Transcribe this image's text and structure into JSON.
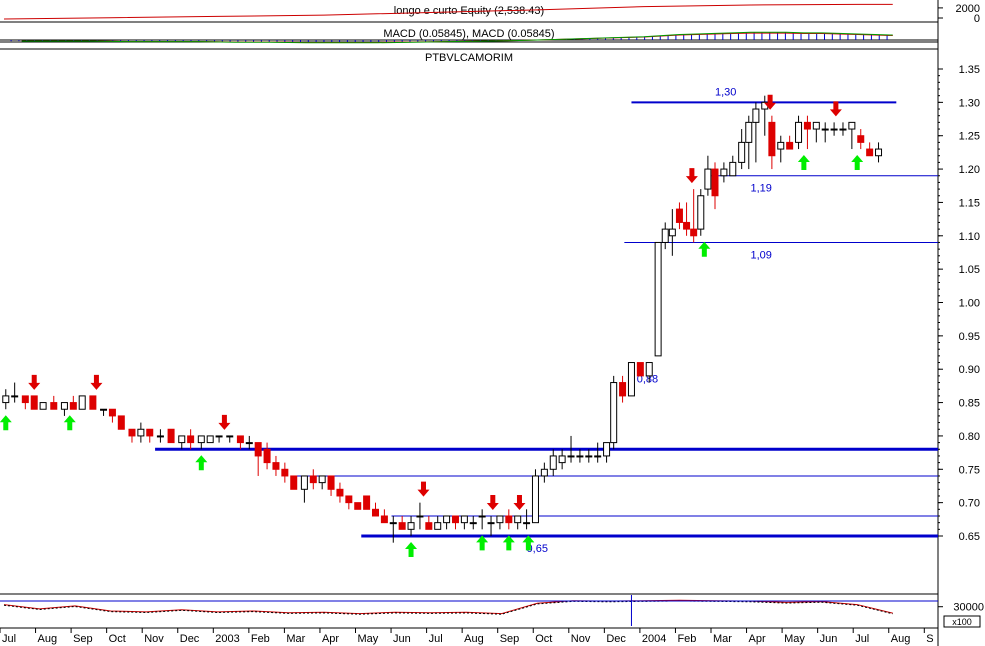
{
  "chart_data": {
    "type": "candlestick",
    "title": "PTBVLCAMORIM",
    "equity_panel": {
      "label": "longo e curto Equity (2,538.43)",
      "y_ticks": [
        "2000",
        "0"
      ],
      "color": "#cc0000"
    },
    "macd_panel": {
      "label": "MACD (0.05845), MACD (0.05845)",
      "histogram_color": "#0000cc"
    },
    "volume_panel": {
      "y_ticks": [
        "30000"
      ],
      "multiplier_label": "x100",
      "line_color": "#cc0000"
    },
    "x_axis_labels": [
      "Jul",
      "Aug",
      "Sep",
      "Oct",
      "Nov",
      "Dec",
      "2003",
      "Feb",
      "Mar",
      "Apr",
      "May",
      "Jun",
      "Jul",
      "Aug",
      "Sep",
      "Oct",
      "Nov",
      "Dec",
      "2004",
      "Feb",
      "Mar",
      "Apr",
      "May",
      "Jun",
      "Jul",
      "Aug",
      "S"
    ],
    "y_axis": {
      "ticks": [
        "1.35",
        "1.30",
        "1.25",
        "1.20",
        "1.15",
        "1.10",
        "1.05",
        "1.00",
        "0.95",
        "0.90",
        "0.85",
        "0.80",
        "0.75",
        "0.70",
        "0.65"
      ],
      "range": [
        0.612,
        1.36
      ]
    },
    "levels": [
      {
        "label": "1,30",
        "value": 1.3,
        "color": "#0000cc",
        "weight": "medium",
        "label_month": 20.3
      },
      {
        "label": "1,19",
        "value": 1.19,
        "color": "#0000cc",
        "weight": "thin",
        "label_month": 21.3
      },
      {
        "label": "1,09",
        "value": 1.09,
        "color": "#0000cc",
        "weight": "thin",
        "label_month": 21.3
      },
      {
        "label": "0,88",
        "value": 0.88,
        "color": "#0000cc",
        "weight": "none",
        "label_month": 18.1
      },
      {
        "label": "",
        "value": 0.78,
        "color": "#0000cc",
        "weight": "thick"
      },
      {
        "label": "",
        "value": 0.74,
        "color": "#0000cc",
        "weight": "thin"
      },
      {
        "label": "",
        "value": 0.68,
        "color": "#0000cc",
        "weight": "thin"
      },
      {
        "label": "0,65",
        "value": 0.65,
        "color": "#0000cc",
        "weight": "thick",
        "label_month": 15.0
      }
    ],
    "candles": [
      {
        "m": 0.05,
        "o": 0.85,
        "h": 0.87,
        "l": 0.84,
        "c": 0.86
      },
      {
        "m": 0.3,
        "o": 0.86,
        "h": 0.88,
        "l": 0.85,
        "c": 0.86
      },
      {
        "m": 0.6,
        "o": 0.86,
        "h": 0.86,
        "l": 0.84,
        "c": 0.85
      },
      {
        "m": 0.85,
        "o": 0.86,
        "h": 0.86,
        "l": 0.84,
        "c": 0.84
      },
      {
        "m": 1.1,
        "o": 0.84,
        "h": 0.85,
        "l": 0.84,
        "c": 0.85
      },
      {
        "m": 1.4,
        "o": 0.85,
        "h": 0.86,
        "l": 0.84,
        "c": 0.84
      },
      {
        "m": 1.7,
        "o": 0.84,
        "h": 0.85,
        "l": 0.83,
        "c": 0.85
      },
      {
        "m": 1.95,
        "o": 0.85,
        "h": 0.86,
        "l": 0.84,
        "c": 0.84
      },
      {
        "m": 2.2,
        "o": 0.84,
        "h": 0.86,
        "l": 0.84,
        "c": 0.86
      },
      {
        "m": 2.5,
        "o": 0.86,
        "h": 0.86,
        "l": 0.84,
        "c": 0.84
      },
      {
        "m": 2.8,
        "o": 0.84,
        "h": 0.84,
        "l": 0.83,
        "c": 0.84
      },
      {
        "m": 3.05,
        "o": 0.84,
        "h": 0.84,
        "l": 0.82,
        "c": 0.83
      },
      {
        "m": 3.3,
        "o": 0.83,
        "h": 0.83,
        "l": 0.81,
        "c": 0.81
      },
      {
        "m": 3.6,
        "o": 0.81,
        "h": 0.81,
        "l": 0.79,
        "c": 0.8
      },
      {
        "m": 3.85,
        "o": 0.8,
        "h": 0.82,
        "l": 0.79,
        "c": 0.81
      },
      {
        "m": 4.1,
        "o": 0.81,
        "h": 0.81,
        "l": 0.79,
        "c": 0.8
      },
      {
        "m": 4.4,
        "o": 0.8,
        "h": 0.81,
        "l": 0.79,
        "c": 0.8
      },
      {
        "m": 4.7,
        "o": 0.81,
        "h": 0.81,
        "l": 0.79,
        "c": 0.79
      },
      {
        "m": 5.0,
        "o": 0.79,
        "h": 0.8,
        "l": 0.78,
        "c": 0.8
      },
      {
        "m": 5.25,
        "o": 0.8,
        "h": 0.81,
        "l": 0.78,
        "c": 0.79
      },
      {
        "m": 5.55,
        "o": 0.79,
        "h": 0.8,
        "l": 0.78,
        "c": 0.8
      },
      {
        "m": 5.8,
        "o": 0.79,
        "h": 0.8,
        "l": 0.79,
        "c": 0.8
      },
      {
        "m": 6.05,
        "o": 0.8,
        "h": 0.8,
        "l": 0.79,
        "c": 0.8
      },
      {
        "m": 6.35,
        "o": 0.8,
        "h": 0.8,
        "l": 0.79,
        "c": 0.8
      },
      {
        "m": 6.65,
        "o": 0.8,
        "h": 0.8,
        "l": 0.78,
        "c": 0.79
      },
      {
        "m": 6.9,
        "o": 0.79,
        "h": 0.8,
        "l": 0.78,
        "c": 0.79
      },
      {
        "m": 7.15,
        "o": 0.79,
        "h": 0.79,
        "l": 0.74,
        "c": 0.77
      },
      {
        "m": 7.4,
        "o": 0.78,
        "h": 0.79,
        "l": 0.75,
        "c": 0.76
      },
      {
        "m": 7.65,
        "o": 0.76,
        "h": 0.77,
        "l": 0.74,
        "c": 0.75
      },
      {
        "m": 7.9,
        "o": 0.75,
        "h": 0.76,
        "l": 0.73,
        "c": 0.74
      },
      {
        "m": 8.15,
        "o": 0.74,
        "h": 0.74,
        "l": 0.72,
        "c": 0.72
      },
      {
        "m": 8.45,
        "o": 0.72,
        "h": 0.74,
        "l": 0.7,
        "c": 0.74
      },
      {
        "m": 8.7,
        "o": 0.74,
        "h": 0.75,
        "l": 0.72,
        "c": 0.73
      },
      {
        "m": 8.95,
        "o": 0.73,
        "h": 0.74,
        "l": 0.72,
        "c": 0.74
      },
      {
        "m": 9.2,
        "o": 0.74,
        "h": 0.74,
        "l": 0.71,
        "c": 0.72
      },
      {
        "m": 9.45,
        "o": 0.72,
        "h": 0.73,
        "l": 0.7,
        "c": 0.71
      },
      {
        "m": 9.7,
        "o": 0.71,
        "h": 0.71,
        "l": 0.69,
        "c": 0.7
      },
      {
        "m": 9.95,
        "o": 0.7,
        "h": 0.7,
        "l": 0.69,
        "c": 0.69
      },
      {
        "m": 10.2,
        "o": 0.71,
        "h": 0.71,
        "l": 0.69,
        "c": 0.69
      },
      {
        "m": 10.45,
        "o": 0.69,
        "h": 0.7,
        "l": 0.68,
        "c": 0.68
      },
      {
        "m": 10.7,
        "o": 0.68,
        "h": 0.69,
        "l": 0.67,
        "c": 0.67
      },
      {
        "m": 10.95,
        "o": 0.67,
        "h": 0.68,
        "l": 0.64,
        "c": 0.67
      },
      {
        "m": 11.2,
        "o": 0.67,
        "h": 0.68,
        "l": 0.66,
        "c": 0.66
      },
      {
        "m": 11.45,
        "o": 0.66,
        "h": 0.68,
        "l": 0.65,
        "c": 0.67
      },
      {
        "m": 11.7,
        "o": 0.68,
        "h": 0.7,
        "l": 0.66,
        "c": 0.68
      },
      {
        "m": 11.95,
        "o": 0.67,
        "h": 0.68,
        "l": 0.66,
        "c": 0.66
      },
      {
        "m": 12.2,
        "o": 0.66,
        "h": 0.68,
        "l": 0.66,
        "c": 0.67
      },
      {
        "m": 12.45,
        "o": 0.67,
        "h": 0.68,
        "l": 0.66,
        "c": 0.68
      },
      {
        "m": 12.7,
        "o": 0.68,
        "h": 0.68,
        "l": 0.66,
        "c": 0.67
      },
      {
        "m": 12.95,
        "o": 0.67,
        "h": 0.68,
        "l": 0.66,
        "c": 0.68
      },
      {
        "m": 13.2,
        "o": 0.67,
        "h": 0.68,
        "l": 0.66,
        "c": 0.67
      },
      {
        "m": 13.45,
        "o": 0.68,
        "h": 0.69,
        "l": 0.66,
        "c": 0.68
      },
      {
        "m": 13.7,
        "o": 0.67,
        "h": 0.68,
        "l": 0.65,
        "c": 0.67
      },
      {
        "m": 13.95,
        "o": 0.67,
        "h": 0.68,
        "l": 0.66,
        "c": 0.68
      },
      {
        "m": 14.2,
        "o": 0.68,
        "h": 0.69,
        "l": 0.66,
        "c": 0.67
      },
      {
        "m": 14.45,
        "o": 0.67,
        "h": 0.68,
        "l": 0.66,
        "c": 0.68
      },
      {
        "m": 14.7,
        "o": 0.67,
        "h": 0.69,
        "l": 0.66,
        "c": 0.67
      },
      {
        "m": 14.95,
        "o": 0.67,
        "h": 0.75,
        "l": 0.67,
        "c": 0.74
      },
      {
        "m": 15.2,
        "o": 0.74,
        "h": 0.76,
        "l": 0.73,
        "c": 0.75
      },
      {
        "m": 15.45,
        "o": 0.75,
        "h": 0.78,
        "l": 0.74,
        "c": 0.77
      },
      {
        "m": 15.7,
        "o": 0.76,
        "h": 0.78,
        "l": 0.75,
        "c": 0.77
      },
      {
        "m": 15.95,
        "o": 0.77,
        "h": 0.8,
        "l": 0.76,
        "c": 0.77
      },
      {
        "m": 16.2,
        "o": 0.77,
        "h": 0.78,
        "l": 0.76,
        "c": 0.77
      },
      {
        "m": 16.45,
        "o": 0.77,
        "h": 0.78,
        "l": 0.76,
        "c": 0.77
      },
      {
        "m": 16.7,
        "o": 0.77,
        "h": 0.79,
        "l": 0.76,
        "c": 0.77
      },
      {
        "m": 16.95,
        "o": 0.77,
        "h": 0.79,
        "l": 0.76,
        "c": 0.79
      },
      {
        "m": 17.15,
        "o": 0.79,
        "h": 0.89,
        "l": 0.78,
        "c": 0.88
      },
      {
        "m": 17.4,
        "o": 0.88,
        "h": 0.89,
        "l": 0.85,
        "c": 0.86
      },
      {
        "m": 17.65,
        "o": 0.86,
        "h": 0.91,
        "l": 0.86,
        "c": 0.91
      },
      {
        "m": 17.9,
        "o": 0.91,
        "h": 0.91,
        "l": 0.89,
        "c": 0.89
      },
      {
        "m": 18.15,
        "o": 0.89,
        "h": 0.91,
        "l": 0.88,
        "c": 0.91
      },
      {
        "m": 18.4,
        "o": 0.92,
        "h": 1.09,
        "l": 0.92,
        "c": 1.09
      },
      {
        "m": 18.6,
        "o": 1.09,
        "h": 1.12,
        "l": 1.08,
        "c": 1.11
      },
      {
        "m": 18.8,
        "o": 1.1,
        "h": 1.14,
        "l": 1.07,
        "c": 1.11
      },
      {
        "m": 19.0,
        "o": 1.14,
        "h": 1.15,
        "l": 1.11,
        "c": 1.12
      },
      {
        "m": 19.2,
        "o": 1.12,
        "h": 1.15,
        "l": 1.1,
        "c": 1.11
      },
      {
        "m": 19.4,
        "o": 1.11,
        "h": 1.17,
        "l": 1.09,
        "c": 1.1
      },
      {
        "m": 19.6,
        "o": 1.11,
        "h": 1.17,
        "l": 1.1,
        "c": 1.16
      },
      {
        "m": 19.8,
        "o": 1.17,
        "h": 1.22,
        "l": 1.16,
        "c": 1.2
      },
      {
        "m": 20.0,
        "o": 1.2,
        "h": 1.21,
        "l": 1.14,
        "c": 1.16
      },
      {
        "m": 20.25,
        "o": 1.19,
        "h": 1.21,
        "l": 1.18,
        "c": 1.2
      },
      {
        "m": 20.5,
        "o": 1.19,
        "h": 1.22,
        "l": 1.19,
        "c": 1.21
      },
      {
        "m": 20.75,
        "o": 1.21,
        "h": 1.26,
        "l": 1.2,
        "c": 1.24
      },
      {
        "m": 20.95,
        "o": 1.24,
        "h": 1.28,
        "l": 1.2,
        "c": 1.27
      },
      {
        "m": 21.15,
        "o": 1.27,
        "h": 1.3,
        "l": 1.21,
        "c": 1.29
      },
      {
        "m": 21.4,
        "o": 1.29,
        "h": 1.31,
        "l": 1.25,
        "c": 1.3
      },
      {
        "m": 21.6,
        "o": 1.27,
        "h": 1.28,
        "l": 1.2,
        "c": 1.22
      },
      {
        "m": 21.85,
        "o": 1.23,
        "h": 1.25,
        "l": 1.21,
        "c": 1.24
      },
      {
        "m": 22.1,
        "o": 1.24,
        "h": 1.25,
        "l": 1.23,
        "c": 1.23
      },
      {
        "m": 22.35,
        "o": 1.24,
        "h": 1.28,
        "l": 1.23,
        "c": 1.27
      },
      {
        "m": 22.6,
        "o": 1.27,
        "h": 1.28,
        "l": 1.23,
        "c": 1.26
      },
      {
        "m": 22.85,
        "o": 1.26,
        "h": 1.27,
        "l": 1.24,
        "c": 1.27
      },
      {
        "m": 23.1,
        "o": 1.26,
        "h": 1.27,
        "l": 1.24,
        "c": 1.26
      },
      {
        "m": 23.35,
        "o": 1.26,
        "h": 1.27,
        "l": 1.25,
        "c": 1.26
      },
      {
        "m": 23.6,
        "o": 1.26,
        "h": 1.27,
        "l": 1.25,
        "c": 1.26
      },
      {
        "m": 23.85,
        "o": 1.26,
        "h": 1.27,
        "l": 1.23,
        "c": 1.27
      },
      {
        "m": 24.1,
        "o": 1.25,
        "h": 1.26,
        "l": 1.23,
        "c": 1.24
      },
      {
        "m": 24.35,
        "o": 1.23,
        "h": 1.24,
        "l": 1.22,
        "c": 1.22
      },
      {
        "m": 24.6,
        "o": 1.22,
        "h": 1.24,
        "l": 1.21,
        "c": 1.23
      }
    ],
    "buy_signals": [
      0.05,
      1.85,
      5.55,
      11.45,
      13.45,
      14.2,
      14.75,
      19.7,
      22.5,
      24.0
    ],
    "sell_signals": [
      0.85,
      2.6,
      6.2,
      11.8,
      13.75,
      14.5,
      19.35,
      21.55,
      23.4
    ],
    "volume_line": [
      [
        0,
        30500
      ],
      [
        1,
        29500
      ],
      [
        2,
        30200
      ],
      [
        3,
        29000
      ],
      [
        4,
        28800
      ],
      [
        5,
        29300
      ],
      [
        6,
        28800
      ],
      [
        7,
        29000
      ],
      [
        8,
        28600
      ],
      [
        9,
        28700
      ],
      [
        10,
        28400
      ],
      [
        11,
        28700
      ],
      [
        12,
        28600
      ],
      [
        13,
        28700
      ],
      [
        14,
        28400
      ],
      [
        15,
        30800
      ],
      [
        16,
        31400
      ],
      [
        17,
        31300
      ],
      [
        18,
        31400
      ],
      [
        19,
        31500
      ],
      [
        20,
        31400
      ],
      [
        21,
        31300
      ],
      [
        22,
        31000
      ],
      [
        23,
        31200
      ],
      [
        24,
        30500
      ],
      [
        24.5,
        29500
      ],
      [
        25,
        28500
      ]
    ],
    "volume_range": [
      25500,
      32500
    ],
    "equity_line": [
      [
        0,
        300
      ],
      [
        3,
        500
      ],
      [
        6,
        700
      ],
      [
        9,
        900
      ],
      [
        12,
        1300
      ],
      [
        15,
        1700
      ],
      [
        18,
        2200
      ],
      [
        21,
        2450
      ],
      [
        24,
        2530
      ],
      [
        25,
        2538
      ]
    ],
    "equity_range": [
      0,
      2900
    ],
    "macd_hist": [
      [
        0.5,
        -0.02
      ],
      [
        1.5,
        -0.02
      ],
      [
        2.5,
        -0.02
      ],
      [
        3.5,
        -0.03
      ],
      [
        4.5,
        -0.03
      ],
      [
        5.5,
        -0.03
      ],
      [
        6.5,
        -0.04
      ],
      [
        7.5,
        -0.04
      ],
      [
        8.5,
        -0.05
      ],
      [
        9.5,
        -0.05
      ],
      [
        10.5,
        -0.05
      ],
      [
        11.5,
        -0.04
      ],
      [
        12.5,
        -0.03
      ],
      [
        13.5,
        -0.02
      ],
      [
        14.5,
        -0.01
      ],
      [
        15.5,
        0.01
      ],
      [
        16.5,
        0.03
      ],
      [
        17.5,
        0.05
      ],
      [
        18.0,
        0.06
      ],
      [
        18.5,
        0.08
      ],
      [
        19.0,
        0.1
      ],
      [
        19.5,
        0.11
      ],
      [
        20.0,
        0.12
      ],
      [
        20.5,
        0.13
      ],
      [
        21.0,
        0.14
      ],
      [
        21.5,
        0.14
      ],
      [
        22.0,
        0.14
      ],
      [
        22.5,
        0.13
      ],
      [
        23.0,
        0.13
      ],
      [
        23.5,
        0.12
      ],
      [
        24.0,
        0.11
      ],
      [
        24.5,
        0.1
      ],
      [
        25.0,
        0.09
      ]
    ],
    "macd_range": [
      -0.1,
      0.16
    ],
    "colors": {
      "up": "#ffffff",
      "down": "#dd0000",
      "buy": "#00ee00",
      "sell": "#dd0000",
      "level": "#0000cc"
    }
  }
}
